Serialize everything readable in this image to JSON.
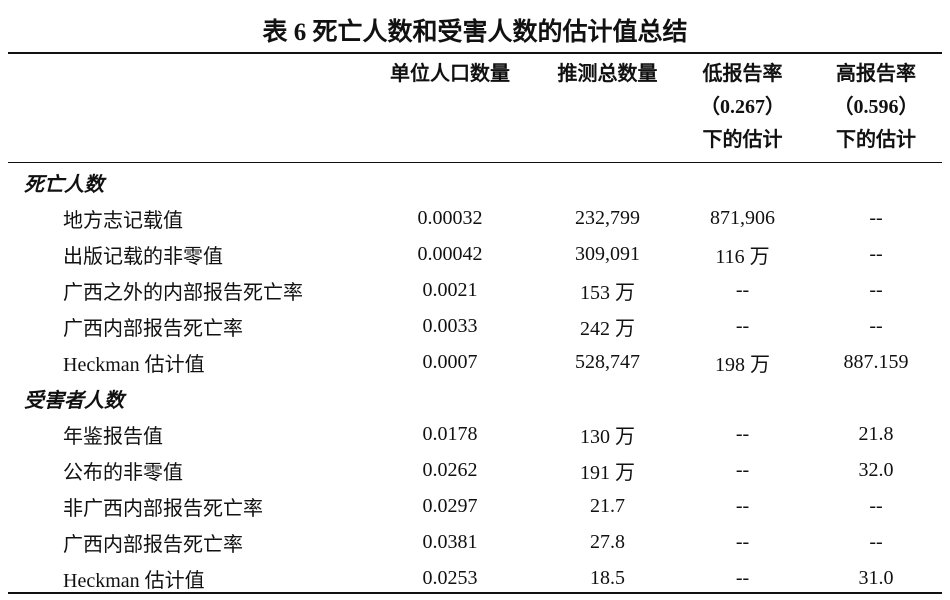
{
  "title": "表 6  死亡人数和受害人数的估计值总结",
  "headers": {
    "col1": "单位人口数量",
    "col2": "推测总数量",
    "col3": [
      "低报告率",
      "（0.267）",
      "下的估计"
    ],
    "col4": [
      "高报告率",
      "（0.596）",
      "下的估计"
    ]
  },
  "sections": [
    {
      "label": "死亡人数",
      "rows": [
        {
          "label": "地方志记载值",
          "v": [
            "0.00032",
            "232,799",
            "871,906",
            "--"
          ]
        },
        {
          "label": "出版记载的非零值",
          "v": [
            "0.00042",
            "309,091",
            "116 万",
            "--"
          ]
        },
        {
          "label": "广西之外的内部报告死亡率",
          "v": [
            "0.0021",
            "153 万",
            "--",
            "--"
          ]
        },
        {
          "label": "广西内部报告死亡率",
          "v": [
            "0.0033",
            "242 万",
            "--",
            "--"
          ]
        },
        {
          "label": "Heckman 估计值",
          "v": [
            "0.0007",
            "528,747",
            "198 万",
            "887.159"
          ]
        }
      ]
    },
    {
      "label": "受害者人数",
      "rows": [
        {
          "label": "年鉴报告值",
          "v": [
            "0.0178",
            "130 万",
            "--",
            "21.8"
          ]
        },
        {
          "label": "公布的非零值",
          "v": [
            "0.0262",
            "191 万",
            "--",
            "32.0"
          ]
        },
        {
          "label": "非广西内部报告死亡率",
          "v": [
            "0.0297",
            "21.7",
            "--",
            "--"
          ]
        },
        {
          "label": "广西内部报告死亡率",
          "v": [
            "0.0381",
            "27.8",
            "--",
            "--"
          ]
        },
        {
          "label": "Heckman 估计值",
          "v": [
            "0.0253",
            "18.5",
            "--",
            "31.0"
          ]
        }
      ]
    }
  ]
}
